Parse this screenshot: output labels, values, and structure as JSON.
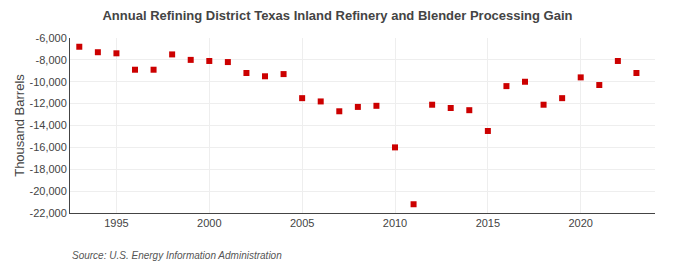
{
  "chart_data": {
    "type": "scatter",
    "title": "Annual Refining District Texas Inland Refinery and Blender Processing Gain",
    "ylabel": "Thousand Barrels",
    "annotations": [
      "Source: U.S. Energy Information Administration"
    ],
    "x": [
      1993,
      1994,
      1995,
      1996,
      1997,
      1998,
      1999,
      2000,
      2001,
      2002,
      2003,
      2004,
      2005,
      2006,
      2007,
      2008,
      2009,
      2010,
      2011,
      2012,
      2013,
      2014,
      2015,
      2016,
      2017,
      2018,
      2019,
      2020,
      2021,
      2022,
      2023
    ],
    "values": [
      -6800,
      -7300,
      -7400,
      -8900,
      -8900,
      -7500,
      -8000,
      -8100,
      -8200,
      -9200,
      -9500,
      -9300,
      -11500,
      -11800,
      -12700,
      -12300,
      -12200,
      -16000,
      -21200,
      -12100,
      -12400,
      -12600,
      -14500,
      -10400,
      -10000,
      -12100,
      -11500,
      -9600,
      -10300,
      -8100,
      -9200
    ],
    "color": "#cc0000",
    "marker": "square",
    "xlim": [
      1992.5,
      2024
    ],
    "xticks": [
      1995,
      2000,
      2005,
      2010,
      2015,
      2020
    ],
    "ylim": [
      -22000,
      -6000
    ],
    "yticks": [
      {
        "value": -6000,
        "label": "-6,000"
      },
      {
        "value": -8000,
        "label": "-8,000"
      },
      {
        "value": -10000,
        "label": "-10,000"
      },
      {
        "value": -12000,
        "label": "-12,000"
      },
      {
        "value": -14000,
        "label": "-14,000"
      },
      {
        "value": -16000,
        "label": "-16,000"
      },
      {
        "value": -18000,
        "label": "-18,000"
      },
      {
        "value": -20000,
        "label": "-20,000"
      },
      {
        "value": -22000,
        "label": "-22,000"
      }
    ],
    "grid": true
  }
}
